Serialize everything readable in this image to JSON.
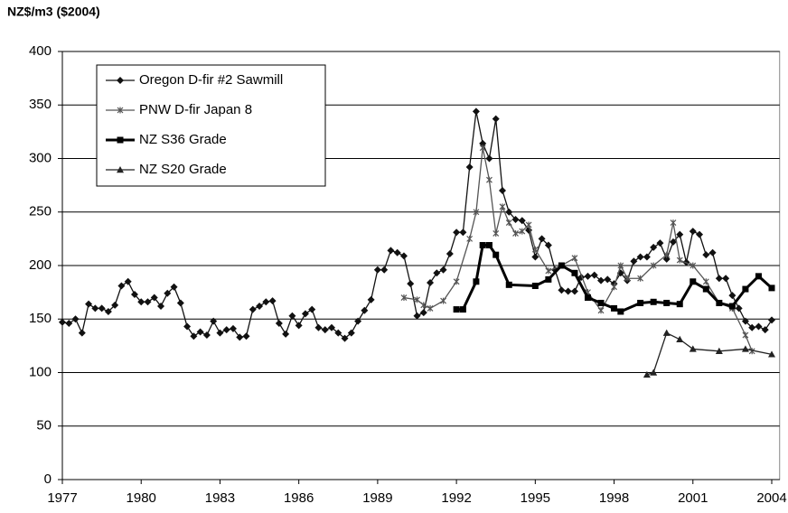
{
  "chart_data": {
    "type": "line",
    "y_label": "NZ$/m3 ($2004)",
    "xlim": [
      1977,
      2004.3
    ],
    "xticks": [
      1977,
      1980,
      1983,
      1986,
      1989,
      1992,
      1995,
      1998,
      2001,
      2004
    ],
    "ylim": [
      0,
      400
    ],
    "yticks": [
      0,
      50,
      100,
      150,
      200,
      250,
      300,
      350,
      400
    ],
    "grid": true,
    "legend": "upper left",
    "series": [
      {
        "name": "Oregon D-fir #2 Sawmill",
        "color": "#111111",
        "marker": "diamond",
        "x": [
          1977,
          1977.25,
          1977.5,
          1977.75,
          1978,
          1978.25,
          1978.5,
          1978.75,
          1979,
          1979.25,
          1979.5,
          1979.75,
          1980,
          1980.25,
          1980.5,
          1980.75,
          1981,
          1981.25,
          1981.5,
          1981.75,
          1982,
          1982.25,
          1982.5,
          1982.75,
          1983,
          1983.25,
          1983.5,
          1983.75,
          1984,
          1984.25,
          1984.5,
          1984.75,
          1985,
          1985.25,
          1985.5,
          1985.75,
          1986,
          1986.25,
          1986.5,
          1986.75,
          1987,
          1987.25,
          1987.5,
          1987.75,
          1988,
          1988.25,
          1988.5,
          1988.75,
          1989,
          1989.25,
          1989.5,
          1989.75,
          1990,
          1990.25,
          1990.5,
          1990.75,
          1991,
          1991.25,
          1991.5,
          1991.75,
          1992,
          1992.25,
          1992.5,
          1992.75,
          1993,
          1993.25,
          1993.5,
          1993.75,
          1994,
          1994.25,
          1994.5,
          1994.75,
          1995,
          1995.25,
          1995.5,
          1995.75,
          1996,
          1996.25,
          1996.5,
          1996.75,
          1997,
          1997.25,
          1997.5,
          1997.75,
          1998,
          1998.25,
          1998.5,
          1998.75,
          1999,
          1999.25,
          1999.5,
          1999.75,
          2000,
          2000.25,
          2000.5,
          2000.75,
          2001,
          2001.25,
          2001.5,
          2001.75,
          2002,
          2002.25,
          2002.5,
          2002.75,
          2003,
          2003.25,
          2003.5,
          2003.75,
          2004
        ],
        "values": [
          147,
          146,
          150,
          137,
          164,
          160,
          160,
          157,
          163,
          181,
          185,
          173,
          166,
          166,
          170,
          162,
          174,
          180,
          165,
          143,
          134,
          138,
          135,
          148,
          137,
          140,
          141,
          133,
          134,
          159,
          162,
          166,
          167,
          146,
          136,
          153,
          144,
          155,
          159,
          142,
          140,
          142,
          137,
          132,
          137,
          148,
          158,
          168,
          196,
          196,
          214,
          212,
          209,
          183,
          153,
          156,
          184,
          193,
          196,
          211,
          231,
          231,
          292,
          344,
          314,
          300,
          337,
          270,
          250,
          243,
          242,
          233,
          208,
          225,
          219,
          196,
          177,
          176,
          176,
          189,
          190,
          191,
          186,
          187,
          183,
          193,
          186,
          204,
          208,
          208,
          217,
          221,
          206,
          222,
          229,
          203,
          232,
          229,
          210,
          212,
          188,
          188,
          172,
          160,
          148,
          142,
          143,
          140,
          149
        ]
      },
      {
        "name": "PNW D-fir Japan 8",
        "color": "#555555",
        "marker": "star",
        "x": [
          1990,
          1990.5,
          1990.75,
          1991,
          1991.5,
          1992,
          1992.5,
          1992.75,
          1993,
          1993.25,
          1993.5,
          1993.75,
          1994,
          1994.25,
          1994.5,
          1994.75,
          1995,
          1995.5,
          1996,
          1996.5,
          1997,
          1997.5,
          1998,
          1998.25,
          1998.5,
          1999,
          1999.5,
          2000,
          2000.25,
          2000.5,
          2001,
          2001.5,
          2002,
          2002.5,
          2003,
          2003.25
        ],
        "values": [
          170,
          168,
          163,
          160,
          167,
          185,
          225,
          250,
          310,
          280,
          230,
          255,
          240,
          230,
          232,
          238,
          215,
          195,
          200,
          207,
          175,
          158,
          180,
          200,
          188,
          188,
          200,
          210,
          240,
          205,
          200,
          185,
          165,
          160,
          135,
          120
        ]
      },
      {
        "name": "NZ S36 Grade",
        "color": "#000000",
        "marker": "square",
        "x": [
          1992,
          1992.25,
          1992.75,
          1993,
          1993.25,
          1993.5,
          1994,
          1995,
          1995.5,
          1996,
          1996.5,
          1997,
          1997.5,
          1998,
          1998.25,
          1999,
          1999.5,
          2000,
          2000.5,
          2001,
          2001.5,
          2002,
          2002.5,
          2003,
          2003.5,
          2004
        ],
        "values": [
          159,
          159,
          185,
          219,
          219,
          210,
          182,
          181,
          187,
          200,
          193,
          170,
          165,
          160,
          157,
          165,
          166,
          165,
          164,
          185,
          178,
          165,
          162,
          178,
          190,
          179
        ]
      },
      {
        "name": "NZ S20 Grade",
        "color": "#222222",
        "marker": "triangle",
        "x": [
          1999.25,
          1999.5,
          2000,
          2000.5,
          2001,
          2002,
          2003,
          2004
        ],
        "values": [
          98,
          100,
          137,
          131,
          122,
          120,
          122,
          117
        ]
      }
    ]
  }
}
